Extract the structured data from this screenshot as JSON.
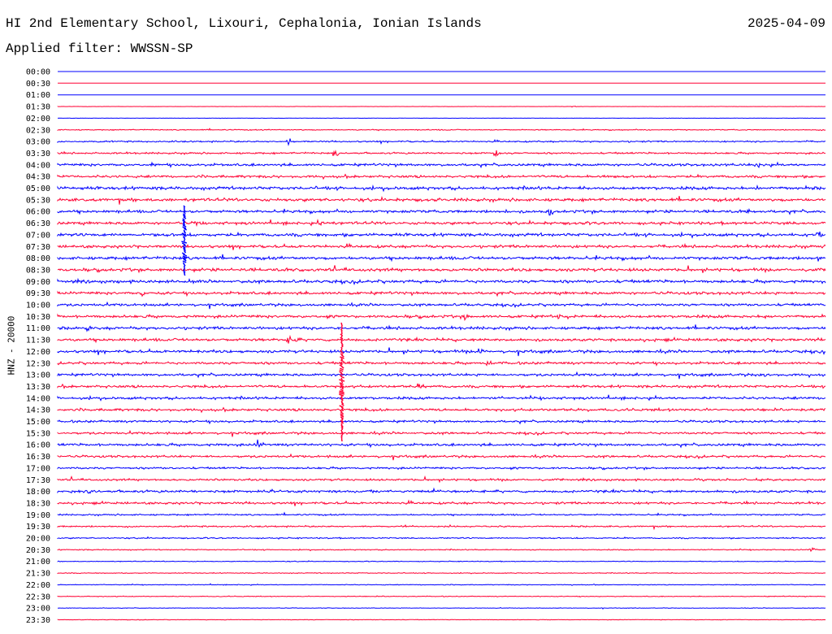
{
  "header": {
    "title": "HI 2nd Elementary School, Lixouri, Cephalonia, Ionian Islands",
    "date": "2025-04-09",
    "filter": "Applied filter: WWSSN-SP"
  },
  "colors": {
    "even": "#0000ff",
    "odd": "#ff0033",
    "text": "#000000"
  },
  "chart_data": {
    "type": "line",
    "title": "HI 2nd Elementary School, Lixouri, Cephalonia, Ionian Islands",
    "ylabel": "HNZ - 20000",
    "rows": [
      "00:00",
      "00:30",
      "01:00",
      "01:30",
      "02:00",
      "02:30",
      "03:00",
      "03:30",
      "04:00",
      "04:30",
      "05:00",
      "05:30",
      "06:00",
      "06:30",
      "07:00",
      "07:30",
      "08:00",
      "08:30",
      "09:00",
      "09:30",
      "10:00",
      "10:30",
      "11:00",
      "11:30",
      "12:00",
      "12:30",
      "13:00",
      "13:30",
      "14:00",
      "14:30",
      "15:00",
      "15:30",
      "16:00",
      "16:30",
      "17:00",
      "17:30",
      "18:00",
      "18:30",
      "19:00",
      "19:30",
      "20:00",
      "20:30",
      "21:00",
      "21:30",
      "22:00",
      "22:30",
      "23:00",
      "23:30"
    ],
    "noise": [
      0,
      0,
      0,
      0.2,
      0.2,
      0.8,
      1.2,
      1.4,
      2.0,
      2.0,
      2.4,
      2.4,
      2.2,
      2.2,
      2.4,
      2.2,
      2.4,
      2.4,
      2.4,
      2.2,
      2.0,
      2.2,
      2.2,
      2.2,
      2.2,
      2.0,
      2.0,
      2.0,
      2.0,
      2.0,
      1.8,
      1.8,
      2.0,
      1.8,
      1.6,
      1.6,
      2.0,
      1.8,
      1.2,
      1.2,
      1.0,
      0.8,
      0.6,
      0.6,
      0.6,
      0.6,
      0.4,
      0.4
    ],
    "events": [
      {
        "row": 3,
        "pos": 0.67,
        "amp": 2
      },
      {
        "row": 6,
        "pos": 0.3,
        "amp": 6
      },
      {
        "row": 7,
        "pos": 0.36,
        "amp": 7
      },
      {
        "row": 7,
        "pos": 0.57,
        "amp": 8
      },
      {
        "row": 8,
        "pos": 0.12,
        "amp": 5
      },
      {
        "row": 8,
        "pos": 0.91,
        "amp": 7
      },
      {
        "row": 9,
        "pos": 0.71,
        "amp": 4
      },
      {
        "row": 10,
        "pos": 0.91,
        "amp": 8
      },
      {
        "row": 11,
        "pos": 0.5,
        "amp": 5
      },
      {
        "row": 12,
        "pos": 0.58,
        "amp": 7
      },
      {
        "row": 12,
        "pos": 0.64,
        "amp": 9
      },
      {
        "row": 12,
        "pos": 0.9,
        "amp": 9
      },
      {
        "row": 13,
        "pos": 0.18,
        "amp": 6
      },
      {
        "row": 13,
        "pos": 0.34,
        "amp": 7
      },
      {
        "row": 14,
        "pos": 0.99,
        "amp": 9
      },
      {
        "row": 16,
        "pos": 0.99,
        "amp": 6
      },
      {
        "row": 18,
        "pos": 0.17,
        "amp": 6
      },
      {
        "row": 19,
        "pos": 0.11,
        "amp": 6
      },
      {
        "row": 21,
        "pos": 0.53,
        "amp": 8
      },
      {
        "row": 21,
        "pos": 0.65,
        "amp": 8
      },
      {
        "row": 21,
        "pos": 0.92,
        "amp": 8
      },
      {
        "row": 22,
        "pos": 0.04,
        "amp": 6
      },
      {
        "row": 23,
        "pos": 0.3,
        "amp": 7
      },
      {
        "row": 24,
        "pos": 0.18,
        "amp": 6
      },
      {
        "row": 24,
        "pos": 0.55,
        "amp": 6
      },
      {
        "row": 25,
        "pos": 0.56,
        "amp": 7
      },
      {
        "row": 26,
        "pos": 0.92,
        "amp": 8
      },
      {
        "row": 27,
        "pos": 0.47,
        "amp": 7
      },
      {
        "row": 32,
        "pos": 0.26,
        "amp": 10
      },
      {
        "row": 41,
        "pos": 0.98,
        "amp": 6
      }
    ],
    "spikes": [
      {
        "row": 12,
        "pos": 0.165,
        "top": 253,
        "bottom": 338
      },
      {
        "row": 27,
        "pos": 0.37,
        "top": 397,
        "bottom": 541
      }
    ]
  }
}
